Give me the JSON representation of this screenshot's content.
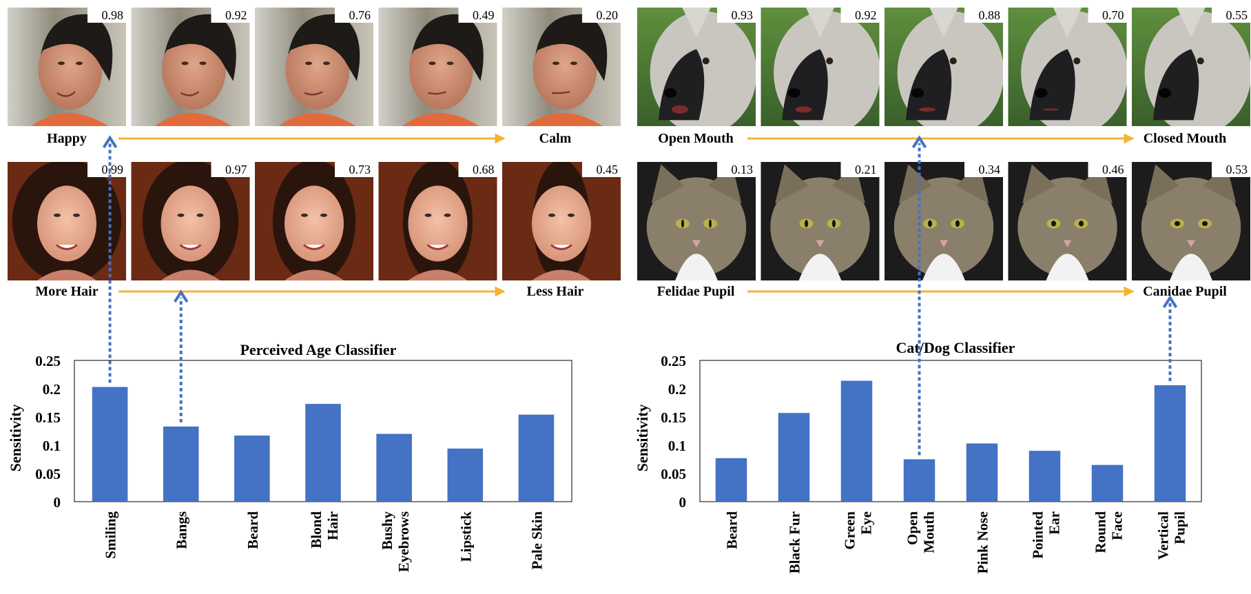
{
  "colors": {
    "bar": "#4472C4",
    "arrow_orange": "#F5B335",
    "arrow_dotted": "#4472C4",
    "face_bg_man": "#b9b3a8",
    "face_bg_woman": "#6a2a14",
    "dog_bg": "#4c7a32",
    "cat_bg": "#1c1c1c"
  },
  "panels": [
    {
      "subject": "face-man",
      "scores": [
        "0.98",
        "0.92",
        "0.76",
        "0.49",
        "0.20"
      ],
      "left_label": "Happy",
      "right_label": "Calm"
    },
    {
      "subject": "face-woman",
      "scores": [
        "0.99",
        "0.97",
        "0.73",
        "0.68",
        "0.45"
      ],
      "left_label": "More Hair",
      "right_label": "Less Hair"
    },
    {
      "subject": "dog",
      "scores": [
        "0.93",
        "0.92",
        "0.88",
        "0.70",
        "0.55"
      ],
      "left_label": "Open Mouth",
      "right_label": "Closed Mouth"
    },
    {
      "subject": "cat",
      "scores": [
        "0.13",
        "0.21",
        "0.34",
        "0.46",
        "0.53"
      ],
      "left_label": "Felidae Pupil",
      "right_label": "Canidae Pupil"
    }
  ],
  "chart_data": [
    {
      "type": "bar",
      "title": "Perceived Age Classifier",
      "ylabel": "Sensitivity",
      "xlabel": "",
      "ylim": [
        0,
        0.25
      ],
      "yticks": [
        "0",
        "0.05",
        "0.1",
        "0.15",
        "0.2",
        "0.25"
      ],
      "grid": false,
      "categories": [
        [
          "Smiling"
        ],
        [
          "Bangs"
        ],
        [
          "Beard"
        ],
        [
          "Blond",
          "Hair"
        ],
        [
          "Bushy",
          "Eyebrows"
        ],
        [
          "Lipstick"
        ],
        [
          "Pale Skin"
        ]
      ],
      "values": [
        0.203,
        0.133,
        0.117,
        0.173,
        0.12,
        0.094,
        0.154
      ]
    },
    {
      "type": "bar",
      "title": "Cat/Dog Classifier",
      "ylabel": "Sensitivity",
      "xlabel": "",
      "ylim": [
        0,
        0.25
      ],
      "yticks": [
        "0",
        "0.05",
        "0.1",
        "0.15",
        "0.2",
        "0.25"
      ],
      "grid": false,
      "categories": [
        [
          "Beard"
        ],
        [
          "Black Fur"
        ],
        [
          "Green",
          "Eye"
        ],
        [
          "Open",
          "Mouth"
        ],
        [
          "Pink Nose"
        ],
        [
          "Pointed",
          "Ear"
        ],
        [
          "Round",
          "Face"
        ],
        [
          "Vertical",
          "Pupil"
        ]
      ],
      "values": [
        0.077,
        0.157,
        0.214,
        0.075,
        0.103,
        0.09,
        0.065,
        0.206
      ]
    }
  ]
}
